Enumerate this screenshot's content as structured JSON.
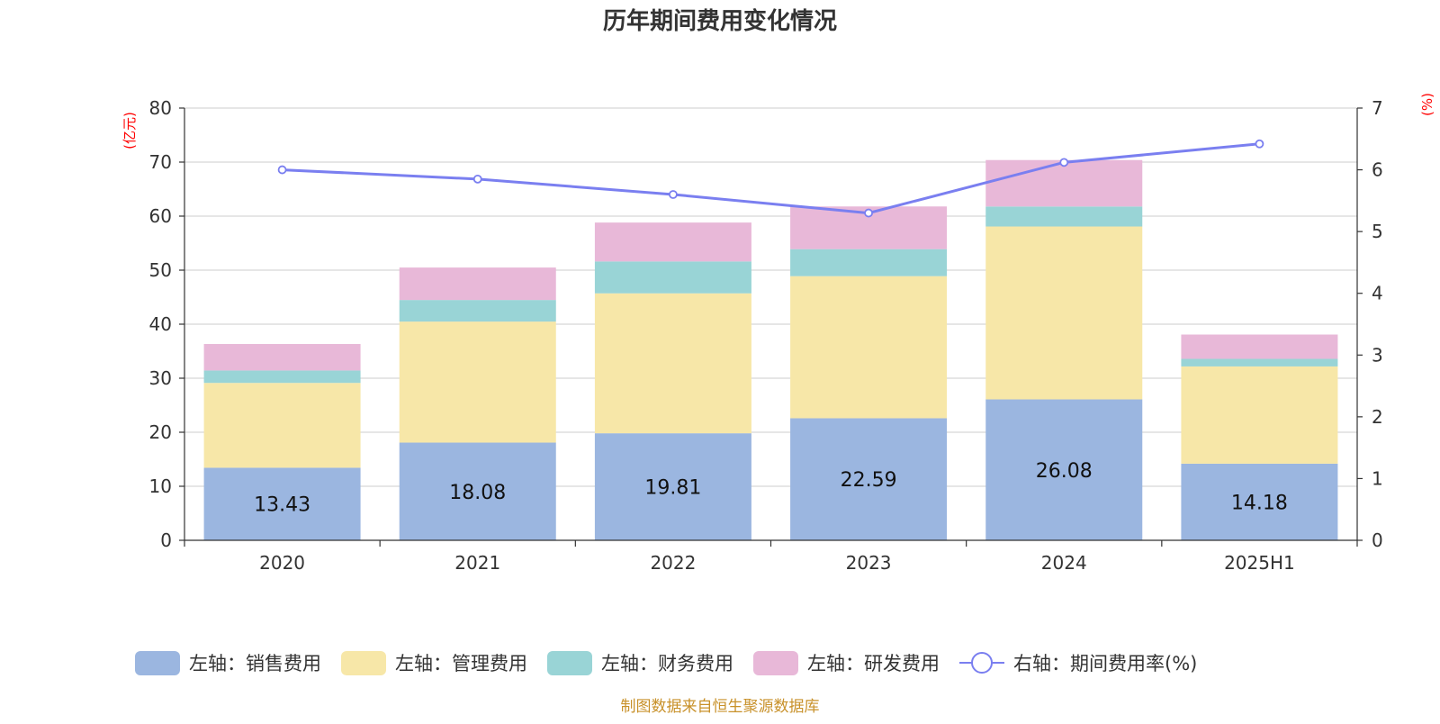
{
  "chart_data": {
    "type": "bar",
    "title": "历年期间费用变化情况",
    "categories": [
      "2020",
      "2021",
      "2022",
      "2023",
      "2024",
      "2025H1"
    ],
    "y_left": {
      "label": "(亿元)",
      "ylim": [
        0,
        80
      ],
      "ticks": [
        0,
        10,
        20,
        30,
        40,
        50,
        60,
        70,
        80
      ]
    },
    "y_right": {
      "label": "(%)",
      "ylim": [
        0,
        7
      ],
      "ticks": [
        0,
        1,
        2,
        3,
        4,
        5,
        6,
        7
      ]
    },
    "stacked": true,
    "grid": true,
    "legend_position": "bottom",
    "series": [
      {
        "name": "左轴：销售费用",
        "axis": "left",
        "type": "bar",
        "color": "#9bb6e0",
        "values": [
          13.43,
          18.08,
          19.81,
          22.59,
          26.08,
          14.18
        ],
        "show_labels": true
      },
      {
        "name": "左轴：管理费用",
        "axis": "left",
        "type": "bar",
        "color": "#f7e7a8",
        "values": [
          15.7,
          22.4,
          25.9,
          26.3,
          32.0,
          18.0
        ]
      },
      {
        "name": "左轴：财务费用",
        "axis": "left",
        "type": "bar",
        "color": "#99d4d6",
        "values": [
          2.3,
          4.0,
          5.9,
          5.0,
          3.7,
          1.4
        ]
      },
      {
        "name": "左轴：研发费用",
        "axis": "left",
        "type": "bar",
        "color": "#e8b8d8",
        "values": [
          4.9,
          6.0,
          7.2,
          7.9,
          8.6,
          4.5
        ]
      },
      {
        "name": "右轴：期间费用率(%)",
        "axis": "right",
        "type": "line",
        "color": "#7a7ff0",
        "values": [
          6.0,
          5.85,
          5.6,
          5.3,
          6.12,
          6.42
        ]
      }
    ]
  },
  "source_note": "制图数据来自恒生聚源数据库"
}
